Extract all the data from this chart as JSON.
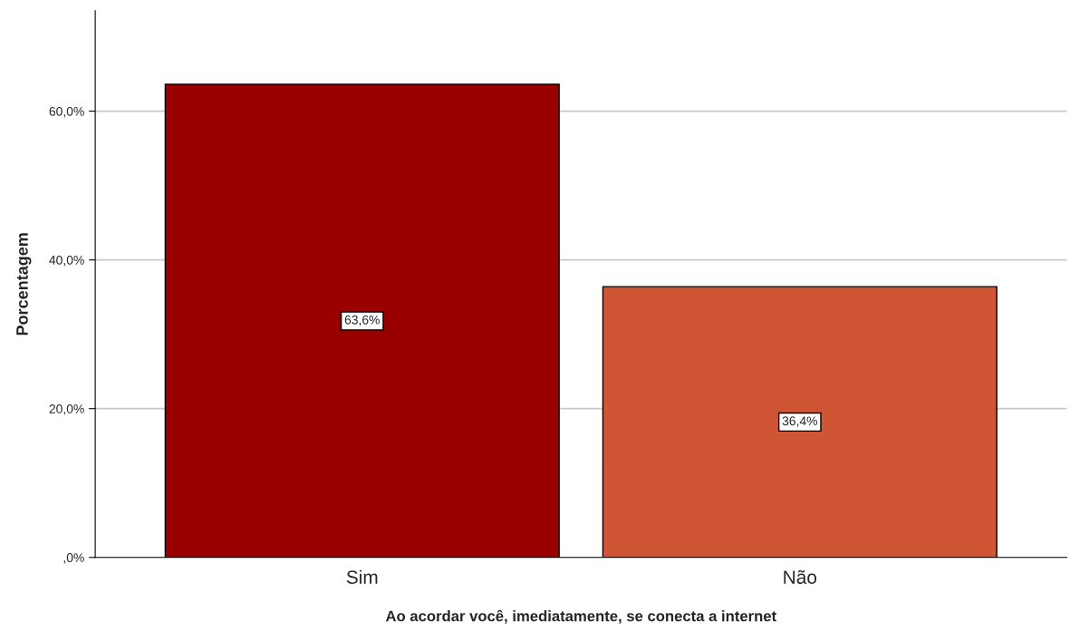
{
  "chart_data": {
    "type": "bar",
    "xlabel": "Ao acordar você, imediatamente, se conecta a internet",
    "ylabel": "Porcentagem",
    "categories": [
      "Sim",
      "Não"
    ],
    "values": [
      63.6,
      36.4
    ],
    "colors": [
      "#990000",
      "#d05535"
    ],
    "value_labels": [
      "63,6%",
      "36,4%"
    ],
    "ylim": [
      0,
      73.5
    ],
    "yticks": [
      {
        "value": 0,
        "label": ",0%"
      },
      {
        "value": 20,
        "label": "20,0%"
      },
      {
        "value": 40,
        "label": "40,0%"
      },
      {
        "value": 60,
        "label": "60,0%"
      }
    ],
    "grid": "y",
    "legend": false
  }
}
